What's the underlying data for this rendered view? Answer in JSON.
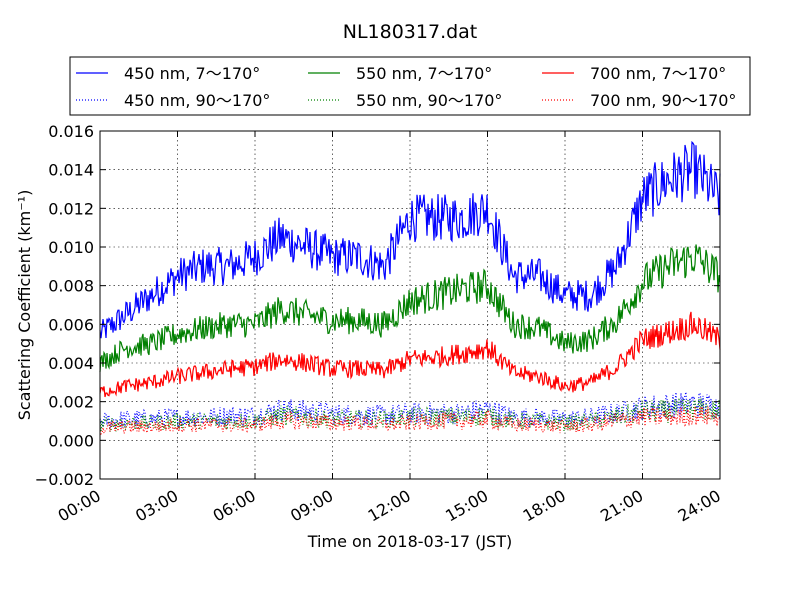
{
  "chart_data": {
    "type": "line",
    "title": "NL180317.dat",
    "xlabel": "Time on 2018-03-17 (JST)",
    "ylabel": "Scattering Coefficient (km⁻¹)",
    "xlim": [
      0,
      24
    ],
    "ylim": [
      -0.002,
      0.016
    ],
    "x_tick_values": [
      0,
      3,
      6,
      9,
      12,
      15,
      18,
      21,
      24
    ],
    "x_ticks": [
      "00:00",
      "03:00",
      "06:00",
      "09:00",
      "12:00",
      "15:00",
      "18:00",
      "21:00",
      "24:00"
    ],
    "y_tick_values": [
      -0.002,
      0.0,
      0.002,
      0.004,
      0.006,
      0.008,
      0.01,
      0.012,
      0.014,
      0.016
    ],
    "y_ticks": [
      "−0.002",
      "0.000",
      "0.002",
      "0.004",
      "0.006",
      "0.008",
      "0.010",
      "0.012",
      "0.014",
      "0.016"
    ],
    "grid": true,
    "legend_position": "top",
    "x": [
      0,
      1,
      2,
      3,
      4,
      5,
      6,
      7,
      8,
      9,
      10,
      11,
      12,
      13,
      14,
      15,
      16,
      17,
      18,
      19,
      20,
      21,
      22,
      23,
      24
    ],
    "series": [
      {
        "name": "450 nm, 7～170°",
        "color": "#0000ff",
        "style": "solid",
        "values": [
          0.0055,
          0.0065,
          0.0075,
          0.0085,
          0.009,
          0.009,
          0.0095,
          0.0105,
          0.01,
          0.0095,
          0.0095,
          0.009,
          0.0115,
          0.0115,
          0.0115,
          0.012,
          0.0085,
          0.0085,
          0.0075,
          0.0075,
          0.009,
          0.0125,
          0.0135,
          0.014,
          0.0125
        ]
      },
      {
        "name": "450 nm, 90～170°",
        "color": "#0000ff",
        "style": "dotted",
        "values": [
          0.001,
          0.0011,
          0.0011,
          0.0012,
          0.0012,
          0.0013,
          0.0013,
          0.0016,
          0.0015,
          0.0014,
          0.0013,
          0.0013,
          0.0014,
          0.0014,
          0.0014,
          0.0016,
          0.0012,
          0.0012,
          0.0011,
          0.0012,
          0.0014,
          0.0017,
          0.0018,
          0.0019,
          0.0017
        ]
      },
      {
        "name": "550 nm, 7～170°",
        "color": "#008000",
        "style": "solid",
        "values": [
          0.004,
          0.0048,
          0.005,
          0.0055,
          0.0058,
          0.006,
          0.006,
          0.0068,
          0.0065,
          0.0062,
          0.0062,
          0.006,
          0.0072,
          0.0075,
          0.0078,
          0.008,
          0.006,
          0.0058,
          0.005,
          0.0052,
          0.0062,
          0.0082,
          0.009,
          0.0095,
          0.0085
        ]
      },
      {
        "name": "550 nm, 90～170°",
        "color": "#008000",
        "style": "dotted",
        "values": [
          0.0008,
          0.0009,
          0.0009,
          0.001,
          0.001,
          0.001,
          0.001,
          0.0013,
          0.0012,
          0.0011,
          0.0011,
          0.0011,
          0.0012,
          0.0012,
          0.0012,
          0.0013,
          0.001,
          0.001,
          0.0009,
          0.001,
          0.0012,
          0.0015,
          0.0015,
          0.0016,
          0.0015
        ]
      },
      {
        "name": "700 nm, 7～170°",
        "color": "#ff0000",
        "style": "solid",
        "values": [
          0.0025,
          0.0028,
          0.003,
          0.0033,
          0.0035,
          0.0037,
          0.0038,
          0.0042,
          0.004,
          0.0037,
          0.0037,
          0.0036,
          0.0042,
          0.0043,
          0.0045,
          0.0048,
          0.0035,
          0.0033,
          0.0028,
          0.003,
          0.0038,
          0.0052,
          0.0056,
          0.006,
          0.0052
        ]
      },
      {
        "name": "700 nm, 90～170°",
        "color": "#ff0000",
        "style": "dotted",
        "values": [
          0.0006,
          0.0007,
          0.0007,
          0.0008,
          0.0008,
          0.0008,
          0.0008,
          0.001,
          0.001,
          0.0009,
          0.0009,
          0.0008,
          0.0009,
          0.001,
          0.001,
          0.0011,
          0.0008,
          0.0008,
          0.0007,
          0.0008,
          0.001,
          0.0012,
          0.0012,
          0.0013,
          0.0012
        ]
      }
    ]
  }
}
